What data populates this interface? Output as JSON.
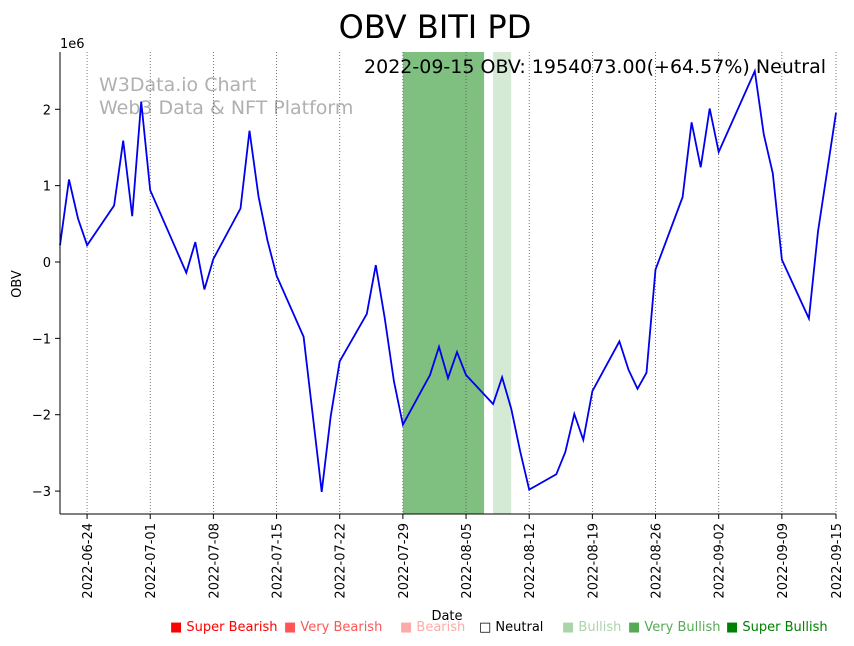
{
  "chart_data": {
    "type": "line",
    "title": "OBV BITI PD",
    "annotation": "2022-09-15 OBV: 1954073.00(+64.57%) Neutral",
    "watermark": [
      "W3Data.io Chart",
      "Web3 Data & NFT Platform"
    ],
    "xlabel": "Date",
    "ylabel": "OBV",
    "y_multiplier_label": "1e6",
    "ylim": [
      -3.3,
      2.75
    ],
    "xlim": [
      "2022-06-21",
      "2022-09-15"
    ],
    "x_ticks": [
      "2022-06-24",
      "2022-07-01",
      "2022-07-08",
      "2022-07-15",
      "2022-07-22",
      "2022-07-29",
      "2022-08-05",
      "2022-08-12",
      "2022-08-19",
      "2022-08-26",
      "2022-09-02",
      "2022-09-09",
      "2022-09-15"
    ],
    "y_ticks": [
      -3,
      -2,
      -1,
      0,
      1,
      2
    ],
    "y_tick_labels": [
      "−3",
      "−2",
      "−1",
      "0",
      "1",
      "2"
    ],
    "line_color": "#0000ee",
    "series": [
      {
        "x": [
          "2022-06-21",
          "2022-06-22",
          "2022-06-23",
          "2022-06-24",
          "2022-06-27",
          "2022-06-28",
          "2022-06-29",
          "2022-06-30",
          "2022-07-01",
          "2022-07-05",
          "2022-07-06",
          "2022-07-07",
          "2022-07-08",
          "2022-07-11",
          "2022-07-12",
          "2022-07-13",
          "2022-07-14",
          "2022-07-15",
          "2022-07-18",
          "2022-07-19",
          "2022-07-20",
          "2022-07-21",
          "2022-07-22",
          "2022-07-25",
          "2022-07-26",
          "2022-07-27",
          "2022-07-28",
          "2022-07-29",
          "2022-08-01",
          "2022-08-02",
          "2022-08-03",
          "2022-08-04",
          "2022-08-05",
          "2022-08-08",
          "2022-08-09",
          "2022-08-10",
          "2022-08-11",
          "2022-08-12",
          "2022-08-15",
          "2022-08-16",
          "2022-08-17",
          "2022-08-18",
          "2022-08-19",
          "2022-08-22",
          "2022-08-23",
          "2022-08-24",
          "2022-08-25",
          "2022-08-26",
          "2022-08-29",
          "2022-08-30",
          "2022-08-31",
          "2022-09-01",
          "2022-09-02",
          "2022-09-06",
          "2022-09-07",
          "2022-09-08",
          "2022-09-09",
          "2022-09-12",
          "2022-09-13",
          "2022-09-15"
        ],
        "values": [
          0.22,
          1.08,
          0.57,
          0.22,
          0.74,
          1.59,
          0.6,
          2.1,
          0.94,
          -0.14,
          0.26,
          -0.36,
          0.04,
          0.7,
          1.72,
          0.86,
          0.28,
          -0.18,
          -0.98,
          -2.0,
          -3.01,
          -2.02,
          -1.3,
          -0.68,
          -0.04,
          -0.74,
          -1.56,
          -2.13,
          -1.48,
          -1.11,
          -1.52,
          -1.18,
          -1.48,
          -1.86,
          -1.51,
          -1.92,
          -2.48,
          -2.98,
          -2.78,
          -2.49,
          -1.99,
          -2.33,
          -1.69,
          -1.04,
          -1.41,
          -1.66,
          -1.45,
          -0.1,
          0.85,
          1.83,
          1.24,
          2.01,
          1.44,
          2.5,
          1.67,
          1.16,
          0.03,
          -0.74,
          0.4,
          1.954073
        ]
      }
    ],
    "shaded_regions": [
      {
        "start": "2022-07-29",
        "end": "2022-08-07",
        "color": "#7fbf7f",
        "label": "Very Bullish"
      },
      {
        "start": "2022-08-08",
        "end": "2022-08-10",
        "color": "#d4ead4",
        "label": "Bullish"
      }
    ],
    "grid": "vertical dotted at x ticks",
    "legend_items": [
      {
        "label": "Super Bearish",
        "color": "#ff0000"
      },
      {
        "label": "Very Bearish",
        "color": "#ff5555"
      },
      {
        "label": "Bearish",
        "color": "#ffaaaa"
      },
      {
        "label": "Neutral",
        "color": "#000000",
        "hollow": true
      },
      {
        "label": "Bullish",
        "color": "#aad4aa"
      },
      {
        "label": "Very Bullish",
        "color": "#55aa55"
      },
      {
        "label": "Super Bullish",
        "color": "#008000"
      }
    ],
    "legend_placement": "bottom-center"
  }
}
